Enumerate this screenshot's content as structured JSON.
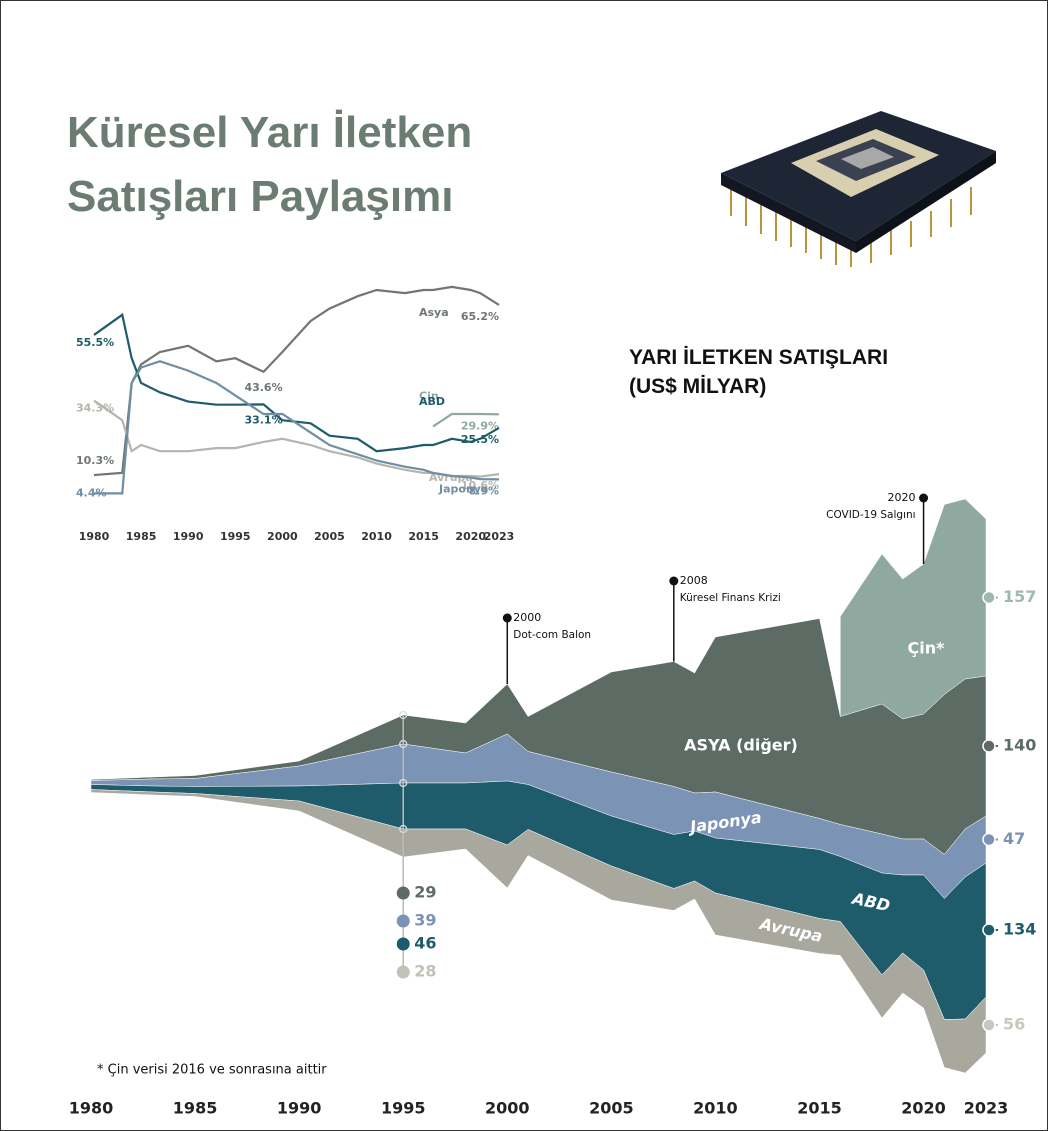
{
  "header": {
    "title": "Küresel Yarı İletken\nSatışları Paylaşımı"
  },
  "chart_data": [
    {
      "type": "line",
      "x": [
        1980,
        1983,
        1984,
        1985,
        1987,
        1990,
        1993,
        1995,
        1998,
        2000,
        2003,
        2005,
        2008,
        2010,
        2013,
        2015,
        2016,
        2018,
        2020,
        2021,
        2023
      ],
      "xlim": [
        1980,
        2023
      ],
      "xticks": [
        1980,
        1985,
        1990,
        1995,
        2000,
        2005,
        2010,
        2015,
        2020,
        2023
      ],
      "series": [
        {
          "name": "Asya",
          "color": "#6f7773",
          "values": [
            10.3,
            11,
            40,
            46,
            50,
            52,
            47,
            48,
            43.6,
            50,
            60,
            64,
            68,
            70,
            69,
            70,
            70,
            71,
            70,
            69,
            65.2
          ],
          "value_labels": [
            "10.3%",
            null,
            null,
            null,
            null,
            null,
            null,
            null,
            "43.6%",
            null,
            null,
            null,
            null,
            null,
            null,
            null,
            null,
            null,
            null,
            null,
            "65.2%"
          ]
        },
        {
          "name": "Çin",
          "color": "#8fa9a0",
          "values": [
            null,
            null,
            null,
            null,
            null,
            null,
            null,
            null,
            null,
            null,
            null,
            null,
            null,
            null,
            null,
            null,
            26,
            30,
            30,
            30,
            29.9
          ],
          "value_labels": [
            null,
            null,
            null,
            null,
            null,
            null,
            null,
            null,
            null,
            null,
            null,
            null,
            null,
            null,
            null,
            null,
            null,
            null,
            null,
            null,
            "29.9%"
          ]
        },
        {
          "name": "ABD",
          "color": "#1f5c6b",
          "values": [
            55.5,
            62,
            48,
            40,
            37,
            34,
            33,
            33,
            33.1,
            28,
            27,
            23,
            22,
            18,
            19,
            20,
            20,
            22,
            21,
            22,
            25.5
          ],
          "value_labels": [
            "55.5%",
            null,
            null,
            null,
            null,
            null,
            null,
            null,
            "33.1%",
            null,
            null,
            null,
            null,
            null,
            null,
            null,
            null,
            null,
            null,
            null,
            "25.5%"
          ]
        },
        {
          "name": "Avrupa",
          "color": "#b4b6ae",
          "values": [
            34.3,
            28,
            18,
            20,
            18,
            18,
            19,
            19,
            21,
            22,
            20,
            18,
            16,
            14,
            12,
            11,
            11,
            10,
            10,
            9.8,
            10.6
          ],
          "value_labels": [
            "34.3%",
            null,
            null,
            null,
            null,
            null,
            null,
            null,
            null,
            null,
            null,
            null,
            null,
            null,
            null,
            null,
            null,
            null,
            null,
            null,
            "10.6%"
          ]
        },
        {
          "name": "Japonya",
          "color": "#6f8ea3",
          "values": [
            4.4,
            4.4,
            40,
            45,
            47,
            44,
            40,
            36,
            30,
            30,
            24,
            20,
            17,
            15,
            13,
            12,
            11,
            10,
            9.5,
            9,
            8.9
          ],
          "value_labels": [
            "4.4%",
            null,
            null,
            null,
            null,
            null,
            null,
            null,
            null,
            null,
            null,
            null,
            null,
            null,
            null,
            null,
            null,
            null,
            null,
            null,
            "8.9%"
          ]
        }
      ]
    },
    {
      "type": "stream",
      "title": "YARI İLETKEN SATIŞLARI\n(US$ MİLYAR)",
      "note": "* Çin verisi 2016 ve sonrasına aittir",
      "x": [
        1980,
        1983,
        1985,
        1990,
        1995,
        1998,
        2000,
        2001,
        2005,
        2008,
        2009,
        2010,
        2015,
        2016,
        2018,
        2019,
        2020,
        2021,
        2022,
        2023
      ],
      "xlim": [
        1980,
        2023
      ],
      "xticks": [
        1980,
        1985,
        1990,
        1995,
        2000,
        2005,
        2010,
        2015,
        2020,
        2023
      ],
      "series": [
        {
          "name": "Çin*",
          "color": "#8fa9a0",
          "values": [
            null,
            null,
            null,
            null,
            null,
            null,
            null,
            null,
            null,
            null,
            null,
            null,
            null,
            100,
            150,
            140,
            150,
            190,
            180,
            157
          ]
        },
        {
          "name": "ASYA (diğer)",
          "color": "#5d6b65",
          "values": [
            1,
            2,
            3,
            5,
            29,
            30,
            50,
            35,
            100,
            125,
            120,
            155,
            200,
            108,
            130,
            120,
            125,
            160,
            150,
            140
          ]
        },
        {
          "name": "Japonya",
          "color": "#7b93b5",
          "values": [
            4,
            7,
            8,
            20,
            39,
            30,
            47,
            33,
            44,
            48,
            38,
            46,
            31,
            32,
            39,
            36,
            36,
            44,
            48,
            47
          ]
        },
        {
          "name": "ABD",
          "color": "#1f5c6b",
          "values": [
            5,
            6,
            7,
            15,
            46,
            46,
            64,
            45,
            50,
            54,
            50,
            55,
            69,
            65,
            102,
            78,
            95,
            121,
            142,
            134
          ]
        },
        {
          "name": "Avrupa",
          "color": "#a9a89f",
          "values": [
            3,
            3,
            3,
            10,
            28,
            20,
            43,
            26,
            34,
            22,
            18,
            42,
            35,
            34,
            43,
            40,
            38,
            48,
            54,
            56
          ]
        }
      ],
      "annotations": [
        {
          "x": 2000,
          "text": "Dot-com Balon"
        },
        {
          "x": 2008,
          "text": "Küresel Finans Krizi"
        },
        {
          "x": 2020,
          "text": "COVID-19 Salgını"
        }
      ]
    }
  ]
}
